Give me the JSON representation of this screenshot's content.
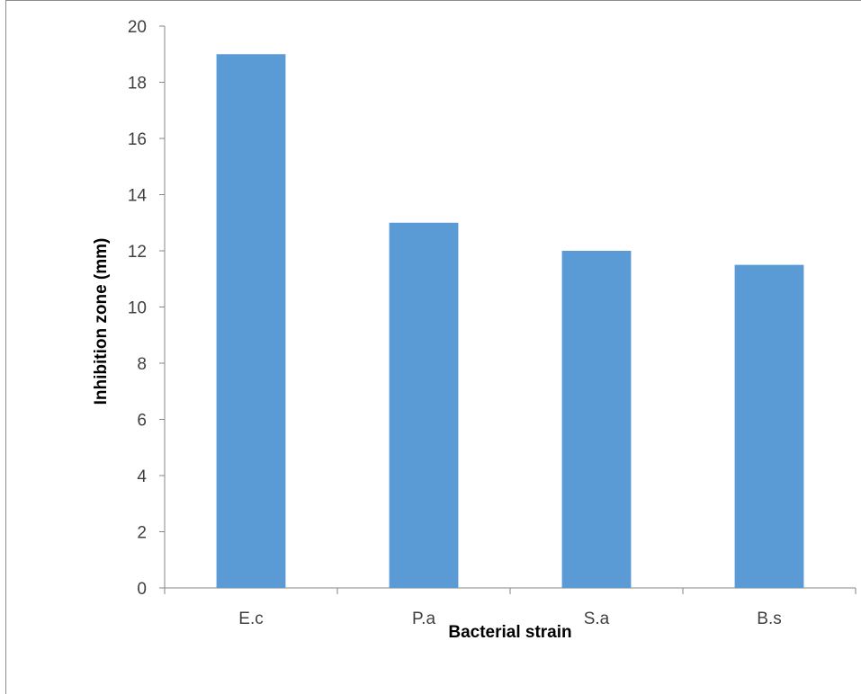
{
  "chart_data": {
    "type": "bar",
    "categories": [
      "E.c",
      "P.a",
      "S.a",
      "B.s"
    ],
    "values": [
      19,
      13,
      12,
      11.5
    ],
    "title": "",
    "xlabel": "Bacterial strain",
    "ylabel": "Inhibition zone (mm)",
    "ylim": [
      0,
      20
    ],
    "yticks": [
      "0",
      "2",
      "4",
      "6",
      "8",
      "10",
      "12",
      "14",
      "16",
      "18",
      "20"
    ],
    "grid": false,
    "legend": "none",
    "bar_color": "#5b9bd5"
  }
}
